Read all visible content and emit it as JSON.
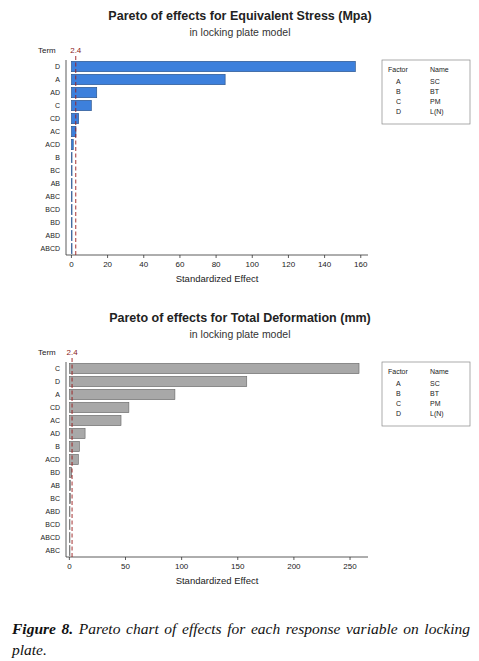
{
  "chart_data": [
    {
      "type": "bar",
      "orientation": "horizontal",
      "title": "Pareto of effects for Equivalent Stress (Mpa)",
      "subtitle": "in locking plate model",
      "x_label": "Standardized Effect",
      "y_label": "Term",
      "categories": [
        "D",
        "A",
        "AD",
        "C",
        "CD",
        "AC",
        "ACD",
        "B",
        "BC",
        "AB",
        "ABC",
        "BCD",
        "BD",
        "ABD",
        "ABCD"
      ],
      "values": [
        157,
        85,
        14,
        11,
        4,
        2.5,
        1,
        0.3,
        0.2,
        0.2,
        0.1,
        0.1,
        0.1,
        0.05,
        0.05
      ],
      "color": "#3d80dc",
      "xlim": [
        -3,
        164
      ],
      "xticks": [
        0,
        20,
        40,
        60,
        80,
        100,
        120,
        140,
        160
      ],
      "annotations": [
        {
          "x": 2.4,
          "label": "2.4"
        }
      ],
      "factors": {
        "header": [
          "Factor",
          "Name"
        ],
        "rows": [
          [
            "A",
            "SC"
          ],
          [
            "B",
            "BT"
          ],
          [
            "C",
            "PM"
          ],
          [
            "D",
            "L(N)"
          ]
        ]
      }
    },
    {
      "type": "bar",
      "orientation": "horizontal",
      "title": "Pareto of effects for Total Deformation (mm)",
      "subtitle": "in locking plate model",
      "x_label": "Standardized Effect",
      "y_label": "Term",
      "categories": [
        "C",
        "D",
        "A",
        "CD",
        "AC",
        "AD",
        "B",
        "ACD",
        "BD",
        "AB",
        "BC",
        "ABD",
        "BCD",
        "ABCD",
        "ABC"
      ],
      "values": [
        258,
        158,
        94,
        53,
        46,
        14,
        9,
        8,
        2,
        1,
        1,
        0.3,
        0.2,
        0.2,
        0.1
      ],
      "color": "#a8a8a8",
      "xlim": [
        -3,
        266
      ],
      "xticks": [
        0,
        50,
        100,
        150,
        200,
        250
      ],
      "annotations": [
        {
          "x": 2.4,
          "label": "2.4"
        }
      ],
      "factors": {
        "header": [
          "Factor",
          "Name"
        ],
        "rows": [
          [
            "A",
            "SC"
          ],
          [
            "B",
            "BT"
          ],
          [
            "C",
            "PM"
          ],
          [
            "D",
            "L(N)"
          ]
        ]
      }
    }
  ],
  "caption_label": "Figure 8.",
  "caption": "Pareto chart of effects for each response variable on locking plate."
}
